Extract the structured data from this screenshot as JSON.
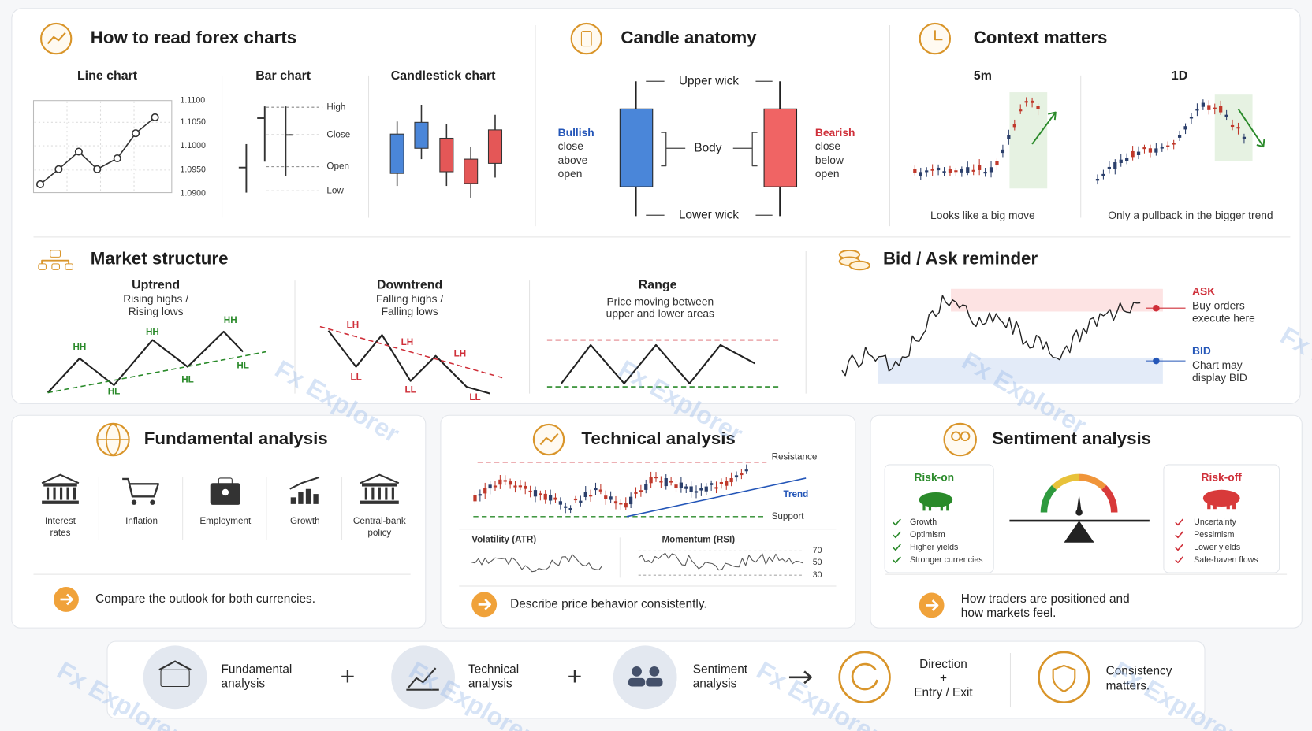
{
  "forex_charts": {
    "title": "How to read forex charts",
    "line_chart": "Line chart",
    "price_ticks": [
      "1.1100",
      "1.1050",
      "1.1000",
      "1.0950",
      "1.0900"
    ],
    "bar_chart": "Bar chart",
    "bar_labels": [
      "High",
      "Close",
      "Open",
      "Low"
    ],
    "candlestick_chart": "Candlestick chart"
  },
  "candle_anatomy": {
    "title": "Candle anatomy",
    "upper_wick": "Upper wick",
    "body": "Body",
    "lower_wick": "Lower wick",
    "bullish": [
      "Bullish",
      "close",
      "above",
      "open"
    ],
    "bearish": [
      "Bearish",
      "close",
      "below",
      "open"
    ]
  },
  "context": {
    "title": "Context matters",
    "panels": [
      {
        "timeframe": "5m",
        "caption": "Looks like a big move"
      },
      {
        "timeframe": "1D",
        "caption": "Only a pullback in the bigger trend"
      }
    ]
  },
  "market_structure": {
    "title": "Market structure",
    "uptrend": {
      "title": "Uptrend",
      "subtitle": [
        "Rising highs /",
        "Rising lows"
      ],
      "highs": [
        "HH",
        "HH",
        "HH"
      ],
      "lows": [
        "HL",
        "HL",
        "HL"
      ]
    },
    "downtrend": {
      "title": "Downtrend",
      "subtitle": [
        "Falling highs /",
        "Falling lows"
      ],
      "highs": [
        "LH",
        "LH",
        "LH"
      ],
      "lows": [
        "LL",
        "LL",
        "LL"
      ]
    },
    "range": {
      "title": "Range",
      "subtitle": [
        "Price moving between",
        "upper and lower areas"
      ]
    }
  },
  "bid_ask": {
    "title": "Bid / Ask reminder",
    "ask": [
      "ASK",
      "Buy orders",
      "execute here"
    ],
    "bid": [
      "BID",
      "Chart may",
      "display BID"
    ]
  },
  "fundamental": {
    "title": "Fundamental analysis",
    "factors": [
      [
        "Interest",
        "rates"
      ],
      [
        "Inflation"
      ],
      [
        "Employment"
      ],
      [
        "Growth"
      ],
      [
        "Central-bank",
        "policy"
      ]
    ],
    "note": "Compare the outlook for both currencies."
  },
  "technical": {
    "title": "Technical analysis",
    "resistance": "Resistance",
    "trend": "Trend",
    "support": "Support",
    "volatility": "Volatility (ATR)",
    "momentum": "Momentum (RSI)",
    "rsi_levels": [
      "70",
      "50",
      "30"
    ],
    "note": "Describe price behavior consistently."
  },
  "sentiment": {
    "title": "Sentiment analysis",
    "risk_on": {
      "label": "Risk-on",
      "items": [
        "Growth",
        "Optimism",
        "Higher yields",
        "Stronger currencies"
      ]
    },
    "risk_off": {
      "label": "Risk-off",
      "items": [
        "Uncertainty",
        "Pessimism",
        "Lower yields",
        "Safe-haven flows"
      ]
    },
    "note": [
      "How traders are positioned and",
      "how markets feel."
    ]
  },
  "summary": {
    "steps": [
      [
        "Fundamental",
        "analysis"
      ],
      [
        "Technical",
        "analysis"
      ],
      [
        "Sentiment",
        "analysis"
      ]
    ],
    "plus": "+",
    "result": [
      "Direction",
      "+",
      "Entry / Exit"
    ],
    "closing": [
      "Consistency",
      "matters."
    ]
  },
  "watermark": "Fx Explorer"
}
